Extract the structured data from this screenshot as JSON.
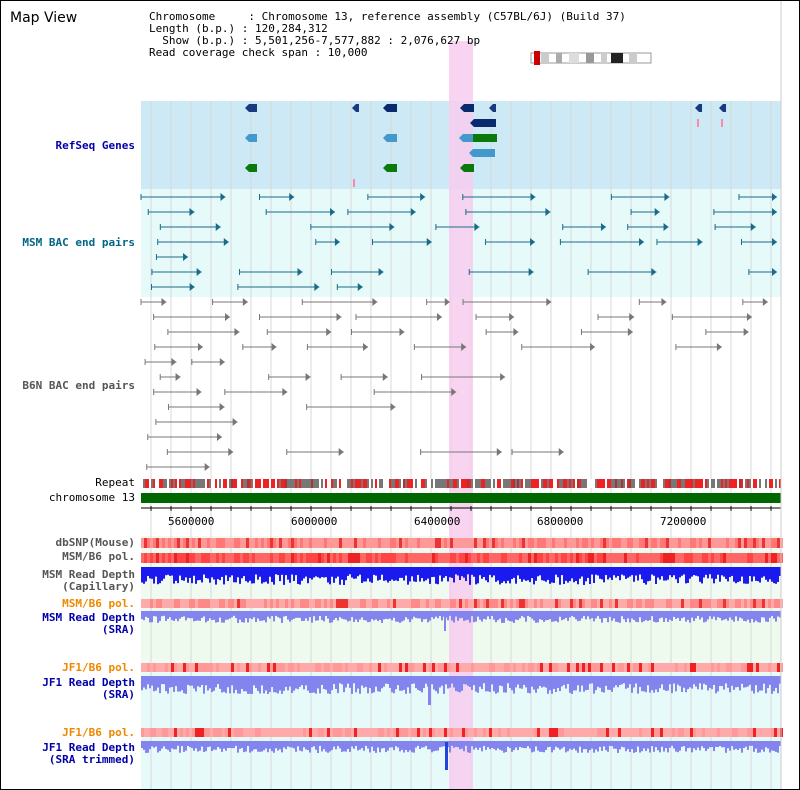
{
  "title": "Map View",
  "info": {
    "line1": "Chromosome     : Chromosome 13, reference assembly (C57BL/6J) (Build 37)",
    "line2": "Length (b.p.) : 120,284,312",
    "line3": "  Show (b.p.) : 5,501,256-7,577,882 : 2,076,627 bp",
    "line4": "Read coverage check span : 10,000"
  },
  "tracks": {
    "refseq": "RefSeq Genes",
    "msm_bac": "MSM BAC end pairs",
    "b6n_bac": "B6N BAC end pairs",
    "repeat": "Repeat",
    "chromosome": "chromosome 13",
    "dbsnp": "dbSNP(Mouse)",
    "msm_b6_pol": "MSM/B6 pol.",
    "msm_depth_cap_1": "MSM Read Depth",
    "msm_depth_cap_2": "(Capillary)",
    "msm_b6_pol_2": "MSM/B6 pol.",
    "msm_depth_sra_1": "MSM Read Depth",
    "msm_depth_sra_2": "(SRA)",
    "jf1_b6_pol": "JF1/B6 pol.",
    "jf1_depth_sra_1": "JF1 Read Depth",
    "jf1_depth_sra_2": "(SRA)",
    "jf1_b6_pol_2": "JF1/B6 pol.",
    "jf1_depth_trim_1": "JF1 Read Depth",
    "jf1_depth_trim_2": "(SRA trimmed)"
  },
  "axis": {
    "ticks": [
      "5600000",
      "6000000",
      "6400000",
      "6800000",
      "7200000"
    ]
  },
  "colors": {
    "refseq_bg": "#cce9f5",
    "msm_bg": "#e6fafa",
    "highlight": "#f7cdef",
    "chrom_green": "#006600",
    "depth_blue": "#1a1aee",
    "depth_violet": "#8484ee",
    "pol_red": "#ee3333",
    "orange_label": "#ee8800",
    "blue_label": "#0000aa",
    "teal_label": "#006688"
  }
}
